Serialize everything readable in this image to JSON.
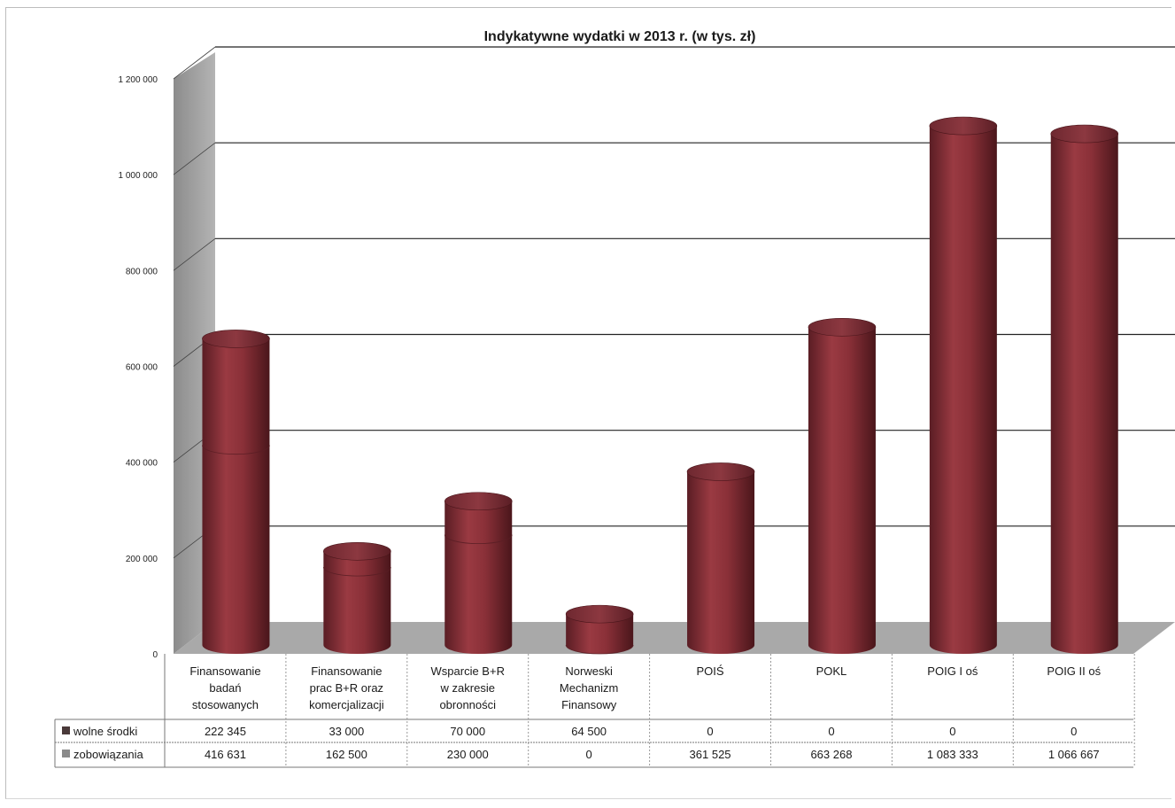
{
  "chart_data": {
    "type": "bar",
    "stacked": true,
    "three_d": true,
    "bar_shape": "cylinder",
    "title": "Indykatywne wydatki w 2013 r. (w tys. zł)",
    "xlabel": "",
    "ylabel": "",
    "ylim": [
      0,
      1200000
    ],
    "yticks": [
      {
        "value": 0,
        "label": "0"
      },
      {
        "value": 200000,
        "label": "200 000"
      },
      {
        "value": 400000,
        "label": "400 000"
      },
      {
        "value": 600000,
        "label": "600 000"
      },
      {
        "value": 800000,
        "label": "800 000"
      },
      {
        "value": 1000000,
        "label": "1 000 000"
      },
      {
        "value": 1200000,
        "label": "1 200 000"
      }
    ],
    "grid": true,
    "legend": "data-table",
    "categories": [
      [
        "Finansowanie",
        "badań",
        "stosowanych"
      ],
      [
        "Finansowanie",
        "prac B+R oraz",
        "komercjalizacji"
      ],
      [
        "Wsparcie B+R",
        "w zakresie",
        "obronności"
      ],
      [
        "Norweski",
        "Mechanizm",
        "Finansowy"
      ],
      [
        "POIŚ"
      ],
      [
        "POKL"
      ],
      [
        "POIG I oś"
      ],
      [
        "POIG II oś"
      ]
    ],
    "series": [
      {
        "name": "zobowiązania",
        "color": "#8c2f36",
        "values": [
          416631,
          162500,
          230000,
          0,
          361525,
          663268,
          1083333,
          1066667
        ],
        "value_labels": [
          "416 631",
          "162 500",
          "230 000",
          "0",
          "361 525",
          "663 268",
          "1 083 333",
          "1 066 667"
        ]
      },
      {
        "name": "wolne środki",
        "color": "#6e2a31",
        "values": [
          222345,
          33000,
          70000,
          64500,
          0,
          0,
          0,
          0
        ],
        "value_labels": [
          "222 345",
          "33 000",
          "70 000",
          "64 500",
          "0",
          "0",
          "0",
          "0"
        ]
      }
    ],
    "table_rows": [
      {
        "series": "wolne środki",
        "label": "wolne środki",
        "marker_color": "#4a3a3a"
      },
      {
        "series": "zobowiązania",
        "label": "zobowiązania",
        "marker_color": "#8a8a8a"
      }
    ]
  }
}
